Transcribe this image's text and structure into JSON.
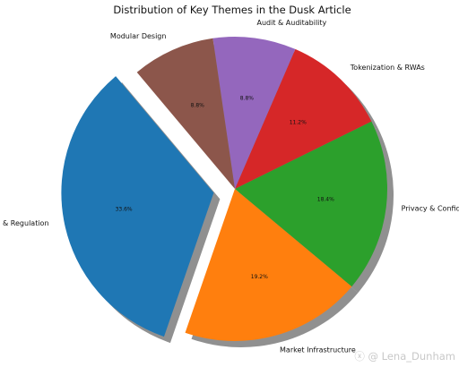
{
  "chart_data": {
    "type": "pie",
    "title": "Distribution of Key Themes in the Dusk Article",
    "categories": [
      "Compliance & Regulation",
      "Market Infrastructure",
      "Privacy & Confidentiality",
      "Tokenization & RWAs",
      "Audit & Auditability",
      "Modular Design"
    ],
    "values": [
      33.6,
      19.2,
      18.4,
      11.2,
      8.8,
      8.8
    ],
    "value_labels": [
      "33.6%",
      "19.2%",
      "18.4%",
      "11.2%",
      "8.8%",
      "8.8%"
    ],
    "colors": [
      "#1f77b4",
      "#ff7f0e",
      "#2ca02c",
      "#d62728",
      "#9467bd",
      "#8c564b"
    ],
    "exploded": [
      "Compliance & Regulation"
    ],
    "shadow": true
  },
  "watermark": "ⓧ @ Lena_Dunham"
}
